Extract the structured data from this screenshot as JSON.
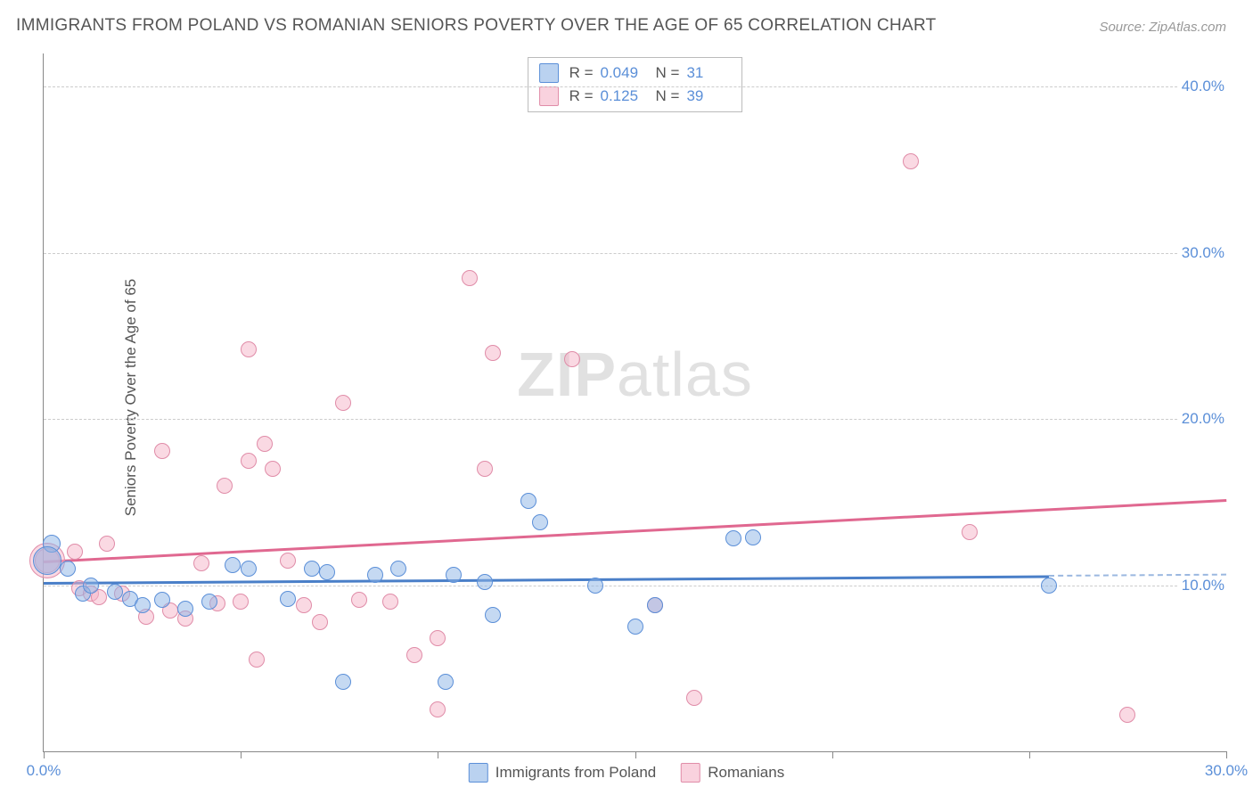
{
  "chart": {
    "type": "scatter",
    "title": "IMMIGRANTS FROM POLAND VS ROMANIAN SENIORS POVERTY OVER THE AGE OF 65 CORRELATION CHART",
    "source": "Source: ZipAtlas.com",
    "y_axis_label": "Seniors Poverty Over the Age of 65",
    "background_color": "#ffffff",
    "grid_color": "#cccccc",
    "axis_color": "#888888",
    "text_color": "#555555",
    "value_color": "#5b8fd8",
    "xlim": [
      0,
      30
    ],
    "ylim": [
      0,
      42
    ],
    "x_ticks": [
      0,
      5,
      10,
      15,
      20,
      25,
      30
    ],
    "x_tick_labels": {
      "0": "0.0%",
      "30": "30.0%"
    },
    "y_ticks": [
      10,
      20,
      30,
      40
    ],
    "y_tick_labels": {
      "10": "10.0%",
      "20": "20.0%",
      "30": "30.0%",
      "40": "40.0%"
    },
    "watermark_prefix": "ZIP",
    "watermark_suffix": "atlas",
    "legend_top": [
      {
        "color": "blue",
        "r_label": "R =",
        "r_value": "0.049",
        "n_label": "N =",
        "n_value": "31"
      },
      {
        "color": "pink",
        "r_label": "R =",
        "r_value": "0.125",
        "n_label": "N =",
        "n_value": "39"
      }
    ],
    "legend_bottom": [
      {
        "color": "blue",
        "label": "Immigrants from Poland"
      },
      {
        "color": "pink",
        "label": "Romanians"
      }
    ],
    "series": {
      "blue": {
        "fill": "rgba(140,180,230,0.5)",
        "stroke": "#5b8fd8",
        "trend_color": "#4a7fc8",
        "trend": {
          "x1": 0,
          "y1": 10.2,
          "x2": 25.5,
          "y2": 10.6,
          "dash_to_x": 30
        },
        "points": [
          {
            "x": 0.2,
            "y": 12.5,
            "r": 10
          },
          {
            "x": 0.1,
            "y": 11.5,
            "r": 16
          },
          {
            "x": 0.6,
            "y": 11.0,
            "r": 9
          },
          {
            "x": 1.0,
            "y": 9.5,
            "r": 9
          },
          {
            "x": 1.2,
            "y": 10.0,
            "r": 9
          },
          {
            "x": 1.8,
            "y": 9.6,
            "r": 9
          },
          {
            "x": 2.2,
            "y": 9.2,
            "r": 9
          },
          {
            "x": 2.5,
            "y": 8.8,
            "r": 9
          },
          {
            "x": 3.0,
            "y": 9.1,
            "r": 9
          },
          {
            "x": 3.6,
            "y": 8.6,
            "r": 9
          },
          {
            "x": 4.2,
            "y": 9.0,
            "r": 9
          },
          {
            "x": 4.8,
            "y": 11.2,
            "r": 9
          },
          {
            "x": 5.2,
            "y": 11.0,
            "r": 9
          },
          {
            "x": 6.2,
            "y": 9.2,
            "r": 9
          },
          {
            "x": 6.8,
            "y": 11.0,
            "r": 9
          },
          {
            "x": 7.2,
            "y": 10.8,
            "r": 9
          },
          {
            "x": 7.6,
            "y": 4.2,
            "r": 9
          },
          {
            "x": 8.4,
            "y": 10.6,
            "r": 9
          },
          {
            "x": 9.0,
            "y": 11.0,
            "r": 9
          },
          {
            "x": 10.2,
            "y": 4.2,
            "r": 9
          },
          {
            "x": 10.4,
            "y": 10.6,
            "r": 9
          },
          {
            "x": 11.2,
            "y": 10.2,
            "r": 9
          },
          {
            "x": 11.4,
            "y": 8.2,
            "r": 9
          },
          {
            "x": 12.3,
            "y": 15.1,
            "r": 9
          },
          {
            "x": 12.6,
            "y": 13.8,
            "r": 9
          },
          {
            "x": 14.0,
            "y": 10.0,
            "r": 9
          },
          {
            "x": 15.0,
            "y": 7.5,
            "r": 9
          },
          {
            "x": 15.5,
            "y": 8.8,
            "r": 9
          },
          {
            "x": 17.5,
            "y": 12.8,
            "r": 9
          },
          {
            "x": 18.0,
            "y": 12.9,
            "r": 9
          },
          {
            "x": 25.5,
            "y": 10.0,
            "r": 9
          }
        ]
      },
      "pink": {
        "fill": "rgba(245,180,200,0.5)",
        "stroke": "#e08ca8",
        "trend_color": "#e06890",
        "trend": {
          "x1": 0,
          "y1": 11.5,
          "x2": 30,
          "y2": 15.2
        },
        "points": [
          {
            "x": 0.1,
            "y": 11.5,
            "r": 14
          },
          {
            "x": 0.1,
            "y": 11.5,
            "r": 20
          },
          {
            "x": 0.8,
            "y": 12.0,
            "r": 9
          },
          {
            "x": 0.9,
            "y": 9.8,
            "r": 9
          },
          {
            "x": 1.2,
            "y": 9.5,
            "r": 9
          },
          {
            "x": 1.4,
            "y": 9.3,
            "r": 9
          },
          {
            "x": 1.6,
            "y": 12.5,
            "r": 9
          },
          {
            "x": 2.0,
            "y": 9.5,
            "r": 9
          },
          {
            "x": 2.6,
            "y": 8.1,
            "r": 9
          },
          {
            "x": 3.0,
            "y": 18.1,
            "r": 9
          },
          {
            "x": 3.2,
            "y": 8.5,
            "r": 9
          },
          {
            "x": 3.6,
            "y": 8.0,
            "r": 9
          },
          {
            "x": 4.0,
            "y": 11.3,
            "r": 9
          },
          {
            "x": 4.4,
            "y": 8.9,
            "r": 9
          },
          {
            "x": 4.6,
            "y": 16.0,
            "r": 9
          },
          {
            "x": 5.0,
            "y": 9.0,
            "r": 9
          },
          {
            "x": 5.2,
            "y": 17.5,
            "r": 9
          },
          {
            "x": 5.2,
            "y": 24.2,
            "r": 9
          },
          {
            "x": 5.4,
            "y": 5.5,
            "r": 9
          },
          {
            "x": 5.6,
            "y": 18.5,
            "r": 9
          },
          {
            "x": 5.8,
            "y": 17.0,
            "r": 9
          },
          {
            "x": 6.2,
            "y": 11.5,
            "r": 9
          },
          {
            "x": 6.6,
            "y": 8.8,
            "r": 9
          },
          {
            "x": 7.0,
            "y": 7.8,
            "r": 9
          },
          {
            "x": 7.6,
            "y": 21.0,
            "r": 9
          },
          {
            "x": 8.0,
            "y": 9.1,
            "r": 9
          },
          {
            "x": 8.8,
            "y": 9.0,
            "r": 9
          },
          {
            "x": 9.4,
            "y": 5.8,
            "r": 9
          },
          {
            "x": 10.0,
            "y": 2.5,
            "r": 9
          },
          {
            "x": 10.0,
            "y": 6.8,
            "r": 9
          },
          {
            "x": 10.8,
            "y": 28.5,
            "r": 9
          },
          {
            "x": 11.2,
            "y": 17.0,
            "r": 9
          },
          {
            "x": 11.4,
            "y": 24.0,
            "r": 9
          },
          {
            "x": 13.4,
            "y": 23.6,
            "r": 9
          },
          {
            "x": 15.5,
            "y": 8.8,
            "r": 9
          },
          {
            "x": 16.5,
            "y": 3.2,
            "r": 9
          },
          {
            "x": 22.0,
            "y": 35.5,
            "r": 9
          },
          {
            "x": 23.5,
            "y": 13.2,
            "r": 9
          },
          {
            "x": 27.5,
            "y": 2.2,
            "r": 9
          }
        ]
      }
    }
  }
}
